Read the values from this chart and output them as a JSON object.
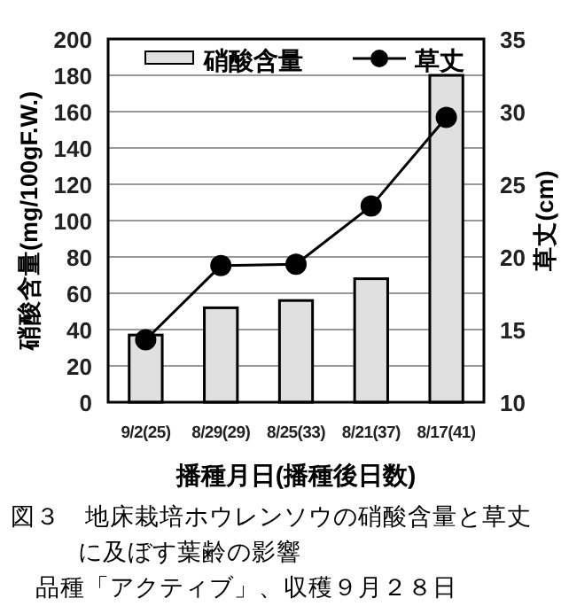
{
  "chart_data": {
    "type": "bar",
    "categories": [
      "9/2(25)",
      "8/29(29)",
      "8/25(33)",
      "8/21(37)",
      "8/17(41)"
    ],
    "series": [
      {
        "name": "硝酸含量",
        "type": "bar",
        "color": "#e0e0e0",
        "values": [
          37,
          52,
          56,
          68,
          180
        ]
      },
      {
        "name": "草丈",
        "type": "line",
        "axis": "y2",
        "color": "#000000",
        "marker": "circle",
        "values": [
          14.3,
          19.4,
          19.5,
          23.5,
          29.6
        ]
      }
    ],
    "xlabel": "播種月日(播種後日数)",
    "ylabel": "硝酸含量(mg/100gF.W.)",
    "y2label": "草丈(cm)",
    "ylim": [
      0,
      200
    ],
    "yticks": [
      0,
      20,
      40,
      60,
      80,
      100,
      120,
      140,
      160,
      180,
      200
    ],
    "y2lim": [
      10,
      35
    ],
    "y2ticks": [
      10,
      15,
      20,
      25,
      30,
      35
    ],
    "grid": "y",
    "legend": "top",
    "annotations": [
      "図３　地床栽培ホウレンソウの硝酸含量と草丈に及ぼす葉齢の影響",
      "品種「アクティブ」、収穫９月２８日"
    ]
  }
}
